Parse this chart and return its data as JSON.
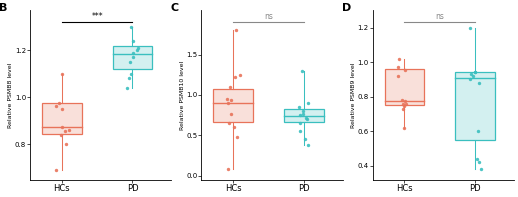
{
  "panels": [
    "B",
    "C",
    "D"
  ],
  "ylabels": [
    "Relative PSMB8 level",
    "Relative PSMB10 level",
    "Relative PSMB9 level"
  ],
  "significance": [
    "***",
    "ns",
    "ns"
  ],
  "sig_colors": [
    "black",
    "#888888",
    "#888888"
  ],
  "hcs_color": "#E8735A",
  "pd_color": "#3ABFBF",
  "B": {
    "HCs": {
      "points": [
        0.69,
        0.8,
        0.84,
        0.855,
        0.86,
        0.875,
        0.95,
        0.965,
        0.975,
        1.1
      ],
      "q1": 0.845,
      "median": 0.875,
      "q3": 0.975,
      "whisker_lo": 0.69,
      "whisker_hi": 1.1
    },
    "PD": {
      "points": [
        1.04,
        1.08,
        1.1,
        1.15,
        1.17,
        1.19,
        1.2,
        1.21,
        1.24,
        1.3
      ],
      "q1": 1.12,
      "median": 1.185,
      "q3": 1.22,
      "whisker_lo": 1.04,
      "whisker_hi": 1.3
    },
    "ylim": [
      0.65,
      1.37
    ],
    "yticks": [
      0.8,
      1.0,
      1.2
    ]
  },
  "C": {
    "HCs": {
      "points": [
        0.08,
        0.48,
        0.6,
        0.65,
        0.77,
        0.9,
        0.94,
        0.95,
        1.1,
        1.22,
        1.25,
        1.8
      ],
      "q1": 0.66,
      "median": 0.905,
      "q3": 1.07,
      "whisker_lo": 0.08,
      "whisker_hi": 1.8
    },
    "PD": {
      "points": [
        0.38,
        0.45,
        0.55,
        0.65,
        0.7,
        0.72,
        0.75,
        0.76,
        0.8,
        0.85,
        0.9,
        1.3
      ],
      "q1": 0.67,
      "median": 0.735,
      "q3": 0.83,
      "whisker_lo": 0.38,
      "whisker_hi": 1.3
    },
    "ylim": [
      -0.05,
      2.05
    ],
    "yticks": [
      0.0,
      0.5,
      1.0,
      1.5
    ]
  },
  "D": {
    "HCs": {
      "points": [
        0.62,
        0.73,
        0.745,
        0.755,
        0.76,
        0.775,
        0.78,
        0.92,
        0.955,
        0.97,
        1.02
      ],
      "q1": 0.75,
      "median": 0.775,
      "q3": 0.96,
      "whisker_lo": 0.62,
      "whisker_hi": 1.02
    },
    "PD": {
      "points": [
        0.38,
        0.42,
        0.44,
        0.6,
        0.88,
        0.9,
        0.92,
        0.93,
        0.94,
        0.945,
        1.2
      ],
      "q1": 0.55,
      "median": 0.91,
      "q3": 0.945,
      "whisker_lo": 0.38,
      "whisker_hi": 1.2
    },
    "ylim": [
      0.32,
      1.3
    ],
    "yticks": [
      0.4,
      0.6,
      0.8,
      1.0,
      1.2
    ]
  }
}
